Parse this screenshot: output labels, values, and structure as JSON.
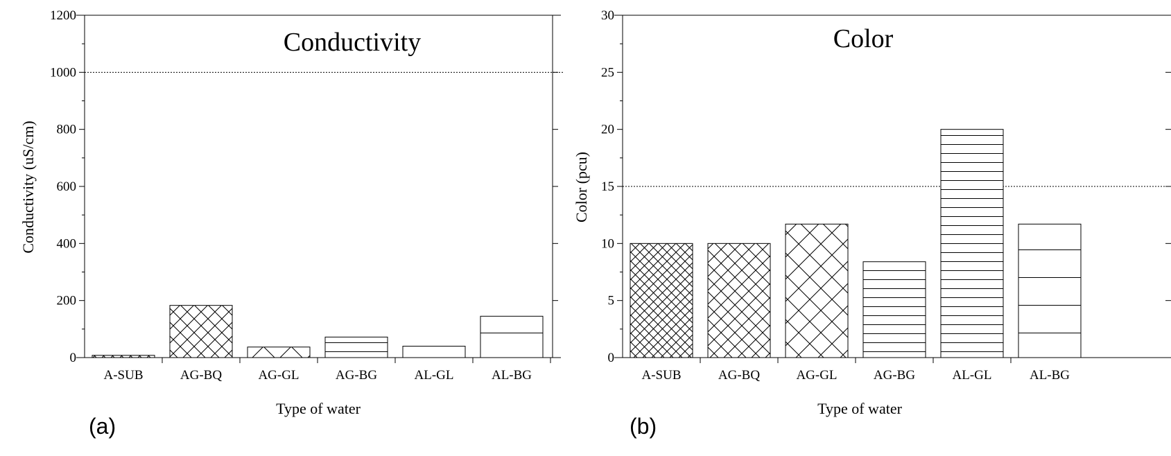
{
  "chart_data": [
    {
      "type": "bar",
      "panel_label": "(a)",
      "title": "Conductivity",
      "xlabel": "Type of water",
      "ylabel": "Conductivity (uS/cm)",
      "categories": [
        "A-SUB",
        "AG-BQ",
        "AG-GL",
        "AG-BG",
        "AL-GL",
        "AL-BG"
      ],
      "values": [
        8,
        183,
        37,
        72,
        40,
        145
      ],
      "ylim": [
        0,
        1200
      ],
      "yticks": [
        "0",
        "200",
        "400",
        "600",
        "800",
        "1000",
        "1200"
      ],
      "reference_line": 1000,
      "patterns": [
        "crosshatch-fine",
        "crosshatch",
        "diagonal-sparse",
        "horizontal",
        "horizontal-sparse",
        "horizontal-sparse"
      ],
      "bar_fill": "#ffffff",
      "bar_stroke": "#000000"
    },
    {
      "type": "bar",
      "panel_label": "(b)",
      "title": "Color",
      "xlabel": "Type of water",
      "ylabel": "Color (pcu)",
      "categories": [
        "A-SUB",
        "AG-BQ",
        "AG-GL",
        "AG-BG",
        "AL-GL",
        "AL-BG"
      ],
      "values": [
        10,
        10,
        11.7,
        8.4,
        20,
        11.7
      ],
      "ylim": [
        0,
        30
      ],
      "yticks": [
        "0",
        "5",
        "10",
        "15",
        "20",
        "25",
        "30"
      ],
      "reference_line": 15,
      "patterns": [
        "crosshatch-fine",
        "crosshatch",
        "crosshatch-wide",
        "horizontal",
        "horizontal",
        "horizontal-sparse"
      ],
      "bar_fill": "#ffffff",
      "bar_stroke": "#000000"
    }
  ]
}
